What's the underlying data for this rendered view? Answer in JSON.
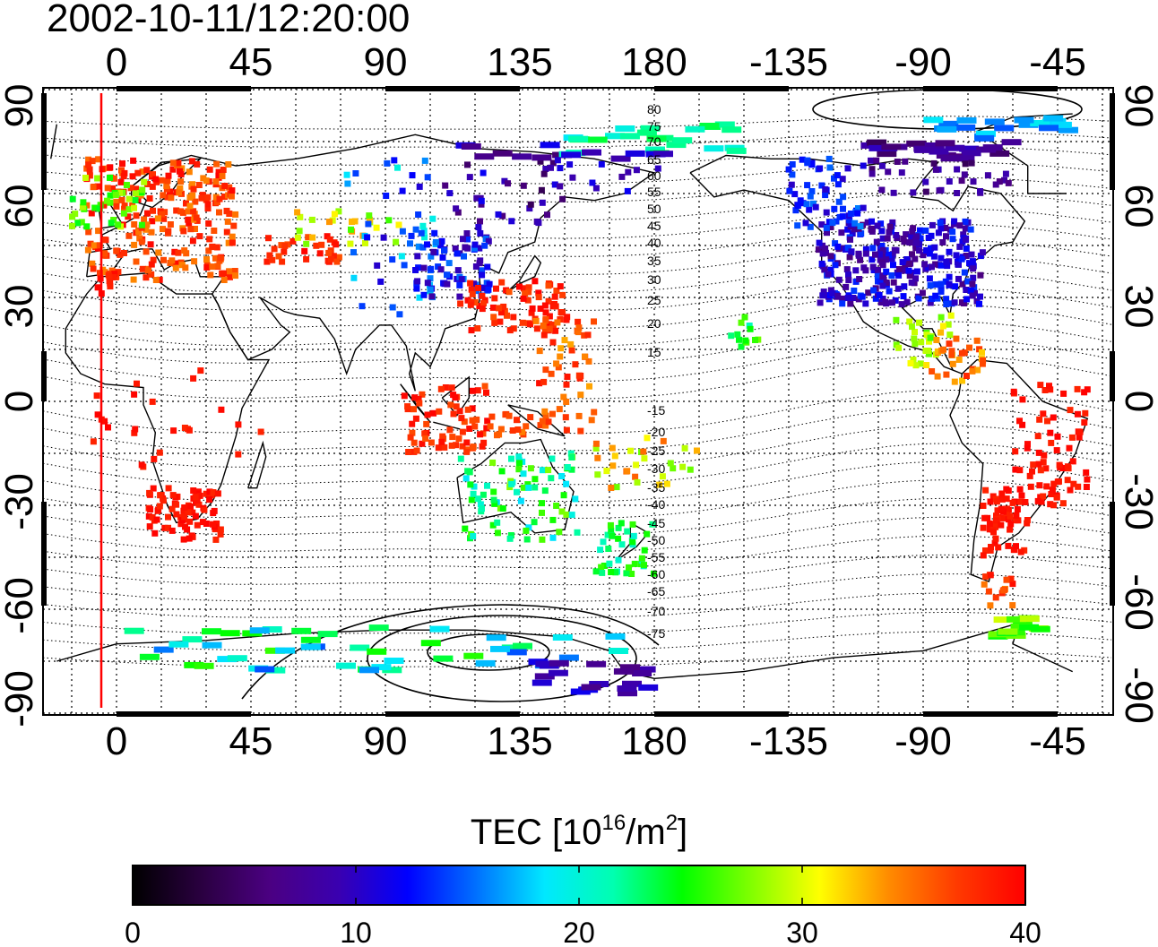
{
  "title": "2002-10-11/12:20:00",
  "map": {
    "top_axis_labels": [
      "0",
      "45",
      "90",
      "135",
      "180",
      "-135",
      "-90",
      "-45"
    ],
    "bottom_axis_labels": [
      "0",
      "45",
      "90",
      "135",
      "180",
      "-135",
      "-90",
      "-45"
    ],
    "left_axis_labels": [
      "90",
      "60",
      "30",
      "0",
      "-30",
      "-60",
      "-90"
    ],
    "right_axis_labels": [
      "90",
      "60",
      "30",
      "0",
      "-30",
      "-60",
      "-90"
    ],
    "contour_labels": [
      "80",
      "75",
      "70",
      "65",
      "60",
      "55",
      "50",
      "45",
      "40",
      "35",
      "30",
      "25",
      "20",
      "15",
      "-15",
      "-20",
      "-25",
      "-30",
      "-35",
      "-40",
      "-45",
      "-50",
      "-55",
      "-60",
      "-65",
      "-70",
      "-75"
    ],
    "terminator_color": "#ff0000"
  },
  "colorbar": {
    "title_prefix": "TEC  [10",
    "title_exp1": "16",
    "title_mid": "/m",
    "title_exp2": "2",
    "title_suffix": "]",
    "min": 0,
    "max": 40,
    "tick_labels": [
      "0",
      "10",
      "20",
      "30",
      "40"
    ],
    "colors": [
      "#000000",
      "#2a0040",
      "#4b0082",
      "#3a00b0",
      "#0000ff",
      "#0070ff",
      "#00e8ff",
      "#00ffb0",
      "#00ff00",
      "#80ff00",
      "#ffff00",
      "#ff8c00",
      "#ff3a00",
      "#ff0000"
    ]
  }
}
